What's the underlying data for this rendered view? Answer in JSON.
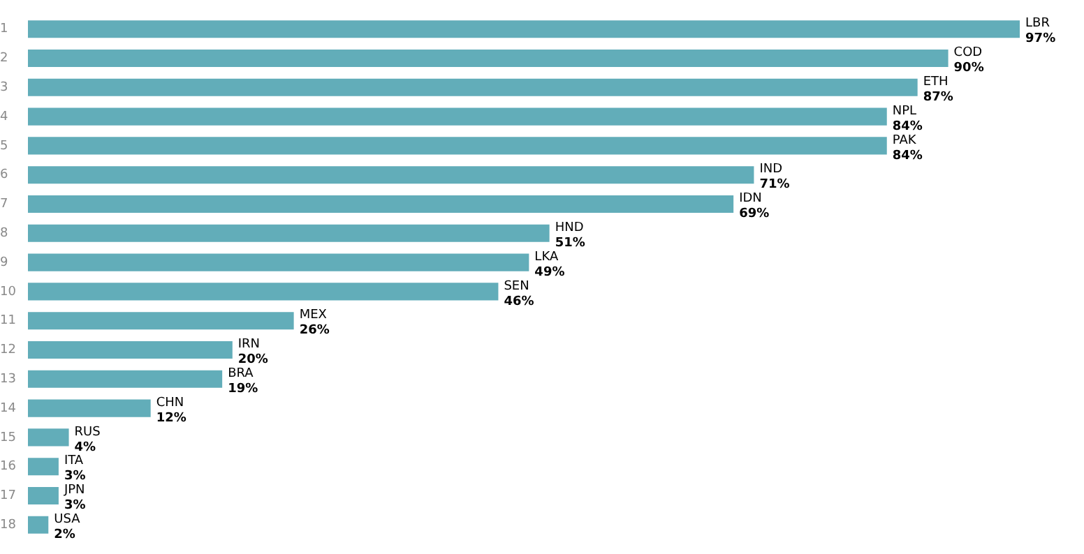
{
  "chart_data": {
    "type": "bar",
    "orientation": "horizontal",
    "categories": [
      "1",
      "2",
      "3",
      "4",
      "5",
      "6",
      "7",
      "8",
      "9",
      "10",
      "11",
      "12",
      "13",
      "14",
      "15",
      "16",
      "17",
      "18"
    ],
    "values": [
      97,
      90,
      87,
      84,
      84,
      71,
      69,
      51,
      49,
      46,
      26,
      20,
      19,
      12,
      4,
      3,
      3,
      2
    ],
    "color": "#62adb9",
    "value_labels": [
      "97%",
      "90%",
      "87%",
      "84%",
      "84%",
      "71%",
      "69%",
      "51%",
      "49%",
      "46%",
      "26%",
      "20%",
      "19%",
      "12%",
      "4%",
      "3%",
      "3%",
      "2%"
    ],
    "annotations": [
      {
        "text": "LBR",
        "x": 97,
        "y": "1"
      },
      {
        "text": "COD",
        "x": 90,
        "y": "2"
      },
      {
        "text": "ETH",
        "x": 87,
        "y": "3"
      },
      {
        "text": "NPL",
        "x": 84,
        "y": "4"
      },
      {
        "text": "PAK",
        "x": 84,
        "y": "5"
      },
      {
        "text": "IND",
        "x": 71,
        "y": "6"
      },
      {
        "text": "IDN",
        "x": 69,
        "y": "7"
      },
      {
        "text": "HND",
        "x": 51,
        "y": "8"
      },
      {
        "text": "LKA",
        "x": 49,
        "y": "9"
      },
      {
        "text": "SEN",
        "x": 46,
        "y": "10"
      },
      {
        "text": "MEX",
        "x": 26,
        "y": "11"
      },
      {
        "text": "IRN",
        "x": 20,
        "y": "12"
      },
      {
        "text": "BRA",
        "x": 19,
        "y": "13"
      },
      {
        "text": "CHN",
        "x": 12,
        "y": "14"
      },
      {
        "text": "RUS",
        "x": 4,
        "y": "15"
      },
      {
        "text": "ITA",
        "x": 3,
        "y": "16"
      },
      {
        "text": "JPN",
        "x": 3,
        "y": "17"
      },
      {
        "text": "USA",
        "x": 2,
        "y": "18"
      }
    ],
    "tick_labels": "y",
    "grid": false,
    "legend": false
  }
}
